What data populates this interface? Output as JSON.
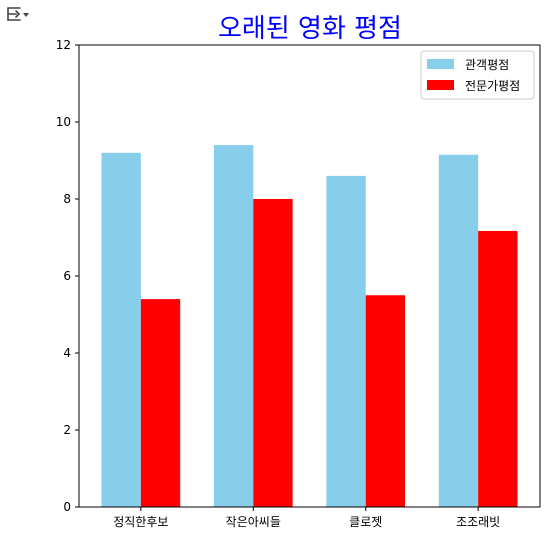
{
  "toolbar": {
    "icon": "output-menu-icon"
  },
  "chart_data": {
    "type": "bar",
    "title": "오래된 영화 평점",
    "title_color": "#0000FF",
    "xlabel": "",
    "ylabel": "",
    "categories": [
      "정직한후보",
      "작은아씨들",
      "클로젯",
      "조조래빗"
    ],
    "series": [
      {
        "name": "관객평점",
        "color": "#87CEEB",
        "values": [
          9.2,
          9.4,
          8.6,
          9.15
        ]
      },
      {
        "name": "전문가평점",
        "color": "#FF0000",
        "values": [
          5.4,
          8.0,
          5.5,
          7.17
        ]
      }
    ],
    "ylim": [
      0,
      12
    ],
    "yticks": [
      "0",
      "2",
      "4",
      "6",
      "8",
      "10",
      "12"
    ],
    "grid": false,
    "legend_position": "top-right"
  }
}
